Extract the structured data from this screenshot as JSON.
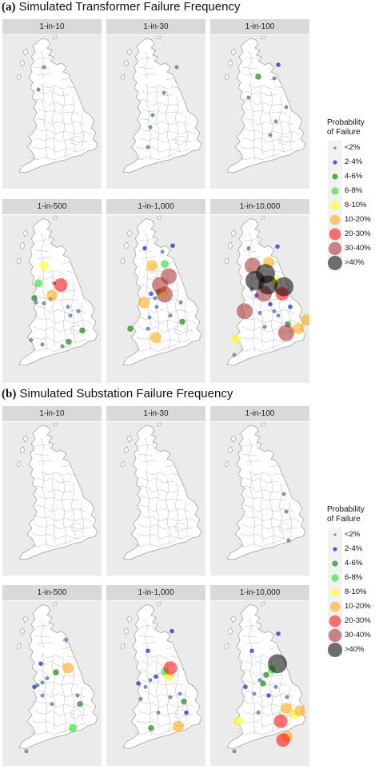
{
  "sections": [
    {
      "label": "(a)",
      "title": "Simulated Transformer Failure Frequency",
      "panels": [
        {
          "title": "1-in-10",
          "points": [
            [
              45,
              68,
              0
            ],
            [
              52,
              40,
              0
            ]
          ]
        },
        {
          "title": "1-in-30",
          "points": [
            [
              88,
              40,
              0
            ],
            [
              72,
              72,
              0
            ],
            [
              58,
              100,
              0
            ],
            [
              55,
              115,
              0
            ],
            [
              52,
              140,
              0
            ]
          ]
        },
        {
          "title": "1-in-100",
          "points": [
            [
              85,
              37,
              1
            ],
            [
              60,
              52,
              2
            ],
            [
              80,
              54,
              0
            ],
            [
              48,
              78,
              0
            ],
            [
              95,
              90,
              0
            ],
            [
              82,
              108,
              0
            ],
            [
              75,
              125,
              0
            ]
          ]
        },
        {
          "title": "1-in-500",
          "points": [
            [
              52,
              58,
              4
            ],
            [
              73,
              80,
              6
            ],
            [
              45,
              78,
              3
            ],
            [
              62,
              92,
              5
            ],
            [
              60,
              96,
              0
            ],
            [
              52,
              101,
              0
            ],
            [
              65,
              78,
              0
            ],
            [
              82,
              105,
              0
            ],
            [
              42,
              100,
              0
            ],
            [
              100,
              132,
              2
            ],
            [
              83,
              145,
              2
            ],
            [
              50,
              148,
              0
            ],
            [
              36,
              143,
              0
            ],
            [
              75,
              150,
              0
            ],
            [
              40,
              95,
              2
            ],
            [
              95,
              110,
              0
            ],
            [
              85,
              115,
              0
            ]
          ]
        },
        {
          "title": "1-in-1,000",
          "points": [
            [
              57,
              58,
              5
            ],
            [
              73,
              56,
              3
            ],
            [
              78,
              70,
              7
            ],
            [
              67,
              80,
              7
            ],
            [
              73,
              91,
              7
            ],
            [
              47,
              100,
              5
            ],
            [
              72,
              90,
              4
            ],
            [
              80,
              115,
              0
            ],
            [
              63,
              105,
              0
            ],
            [
              56,
              90,
              1
            ],
            [
              62,
              140,
              5
            ],
            [
              93,
              100,
              0
            ],
            [
              95,
              122,
              2
            ],
            [
              30,
              130,
              2
            ],
            [
              52,
              130,
              0
            ],
            [
              54,
              117,
              0
            ],
            [
              48,
              38,
              1
            ],
            [
              83,
              35,
              1
            ],
            [
              61,
              95,
              0
            ],
            [
              65,
              88,
              2
            ],
            [
              70,
              42,
              0
            ]
          ]
        },
        {
          "title": "1-in-10,000",
          "points": [
            [
              53,
              58,
              7
            ],
            [
              73,
              54,
              5
            ],
            [
              69,
              67,
              8
            ],
            [
              56,
              75,
              8
            ],
            [
              72,
              80,
              8
            ],
            [
              92,
              82,
              8
            ],
            [
              82,
              75,
              4
            ],
            [
              90,
              90,
              6
            ],
            [
              43,
              110,
              7
            ],
            [
              67,
              90,
              7
            ],
            [
              52,
              85,
              0
            ],
            [
              80,
              110,
              0
            ],
            [
              62,
              112,
              0
            ],
            [
              75,
              102,
              1
            ],
            [
              95,
              135,
              7
            ],
            [
              110,
              130,
              5
            ],
            [
              120,
              120,
              5
            ],
            [
              32,
              142,
              4
            ],
            [
              97,
              125,
              2
            ],
            [
              68,
              128,
              0
            ],
            [
              30,
              160,
              0
            ],
            [
              85,
              115,
              0
            ],
            [
              58,
              92,
              1
            ],
            [
              100,
              105,
              1
            ],
            [
              84,
              36,
              1
            ],
            [
              48,
              38,
              0
            ]
          ]
        }
      ],
      "legend": {
        "title": [
          "Probability",
          "of Failure"
        ],
        "items": [
          "<2%",
          "2-4%",
          "4-6%",
          "6-8%",
          "8-10%",
          "10-20%",
          "20-30%",
          "30-40%",
          ">40%"
        ]
      }
    },
    {
      "label": "(b)",
      "title": "Simulated Substation Failure Frequency",
      "panels": [
        {
          "title": "1-in-10",
          "points": []
        },
        {
          "title": "1-in-30",
          "points": []
        },
        {
          "title": "1-in-100",
          "points": [
            [
              92,
              90,
              0
            ],
            [
              98,
              148,
              0
            ],
            [
              95,
              112,
              0
            ]
          ]
        },
        {
          "title": "1-in-500",
          "points": [
            [
              80,
              45,
              0
            ],
            [
              48,
              73,
              1
            ],
            [
              82,
              78,
              5
            ],
            [
              67,
              83,
              2
            ],
            [
              50,
              95,
              0
            ],
            [
              44,
              98,
              0
            ],
            [
              97,
              120,
              2
            ],
            [
              62,
              120,
              0
            ],
            [
              88,
              148,
              3
            ],
            [
              50,
              110,
              0
            ],
            [
              40,
              100,
              1
            ],
            [
              30,
              175,
              0
            ],
            [
              94,
              110,
              0
            ],
            [
              56,
              90,
              0
            ]
          ]
        },
        {
          "title": "1-in-1,000",
          "points": [
            [
              52,
              58,
              1
            ],
            [
              80,
              78,
              6
            ],
            [
              73,
              82,
              3
            ],
            [
              78,
              88,
              4
            ],
            [
              62,
              88,
              1
            ],
            [
              55,
              92,
              0
            ],
            [
              97,
              117,
              2
            ],
            [
              90,
              146,
              5
            ],
            [
              56,
              148,
              2
            ],
            [
              49,
              100,
              0
            ],
            [
              40,
              96,
              1
            ],
            [
              43,
              114,
              0
            ],
            [
              80,
              112,
              0
            ],
            [
              65,
              130,
              0
            ],
            [
              92,
              108,
              0
            ],
            [
              82,
              35,
              1
            ],
            [
              100,
              130,
              1
            ]
          ]
        },
        {
          "title": "1-in-10,000",
          "points": [
            [
              52,
              58,
              1
            ],
            [
              84,
              73,
              8
            ],
            [
              77,
              80,
              3
            ],
            [
              70,
              86,
              2
            ],
            [
              62,
              92,
              0
            ],
            [
              95,
              125,
              5
            ],
            [
              112,
              128,
              5
            ],
            [
              105,
              132,
              4
            ],
            [
              88,
              140,
              6
            ],
            [
              35,
              140,
              4
            ],
            [
              96,
              158,
              5
            ],
            [
              91,
              162,
              6
            ],
            [
              60,
              130,
              0
            ],
            [
              96,
              112,
              0
            ],
            [
              44,
              100,
              1
            ],
            [
              30,
              175,
              0
            ],
            [
              55,
              108,
              0
            ],
            [
              82,
              100,
              0
            ],
            [
              73,
              110,
              1
            ],
            [
              66,
              96,
              2
            ],
            [
              85,
              38,
              1
            ]
          ]
        }
      ],
      "legend": {
        "title": [
          "Probability",
          "of Failure"
        ],
        "items": [
          "<2%",
          "2-4%",
          "4-6%",
          "6-8%",
          "8-10%",
          "10-20%",
          "20-30%",
          "30-40%",
          ">40%"
        ]
      }
    }
  ],
  "categories": [
    {
      "color": "#7799bb",
      "opacity": 1.0
    },
    {
      "color": "#3333dd",
      "opacity": 0.8
    },
    {
      "color": "#2e8b2e",
      "opacity": 0.75
    },
    {
      "color": "#22dd22",
      "opacity": 0.6
    },
    {
      "color": "#ffff00",
      "opacity": 0.55
    },
    {
      "color": "#ffa500",
      "opacity": 0.55
    },
    {
      "color": "#ff0000",
      "opacity": 0.55
    },
    {
      "color": "#a52a2a",
      "opacity": 0.55
    },
    {
      "color": "#000000",
      "opacity": 0.55
    }
  ]
}
